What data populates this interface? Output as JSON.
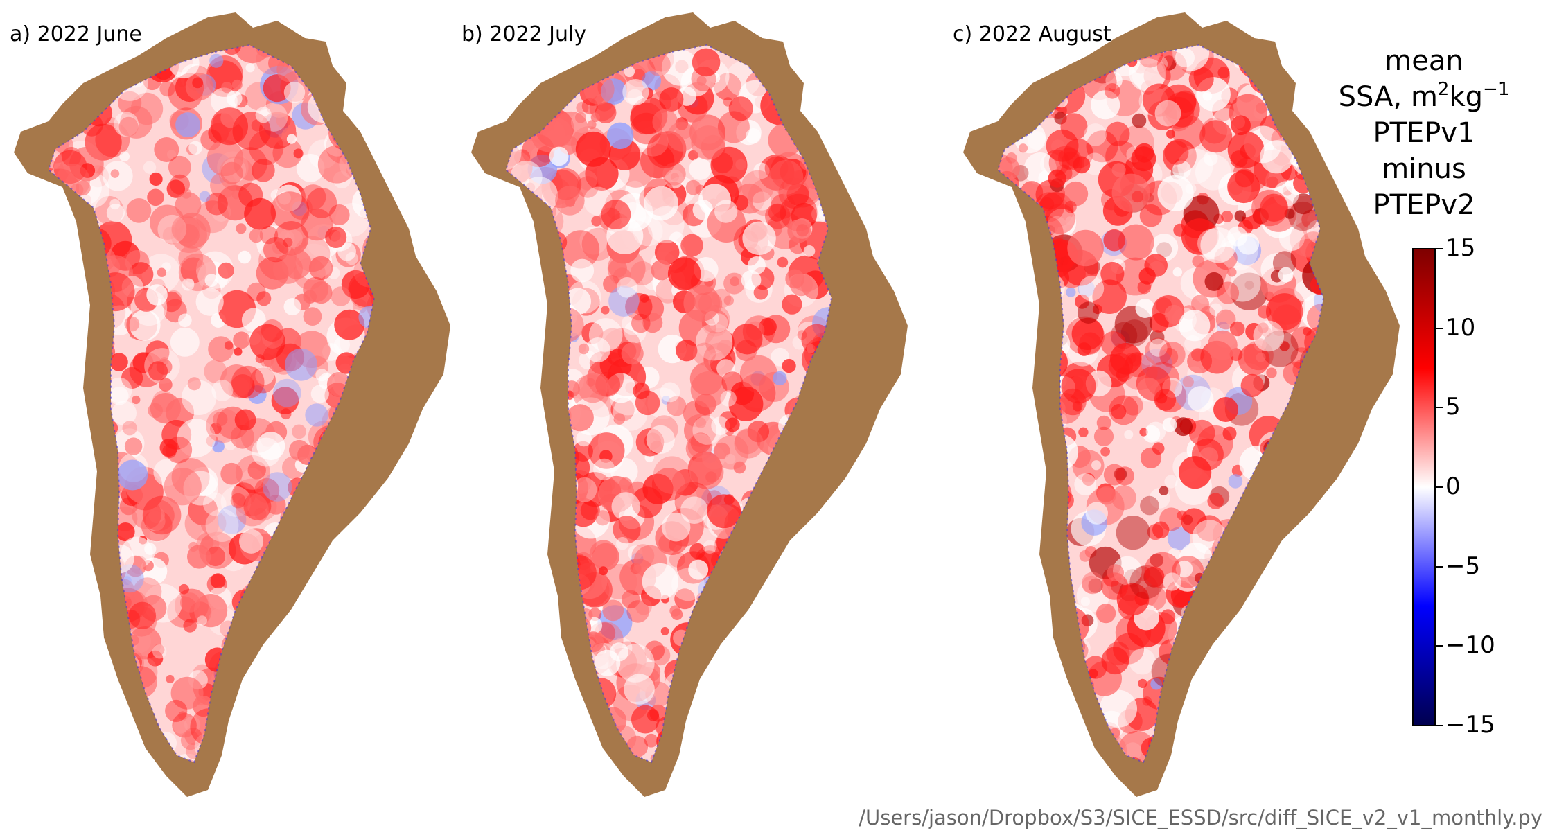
{
  "panels": [
    {
      "title": "a) 2022 June",
      "intensity": 0.55
    },
    {
      "title": "b) 2022 July",
      "intensity": 0.75
    },
    {
      "title": "c) 2022 August",
      "intensity": 0.95
    }
  ],
  "colorbar": {
    "title_line1": "mean",
    "title_line2_prefix": "SSA, m",
    "title_line2_sup1": "2",
    "title_line2_mid": "kg",
    "title_line2_sup2": "−1",
    "title_line3": "PTEPv1",
    "title_line4": "minus",
    "title_line5": "PTEPv2",
    "min": -15,
    "max": 15,
    "ticks": [
      "15",
      "10",
      "5",
      "0",
      "−5",
      "−10",
      "−15"
    ],
    "colors": {
      "top": "#7f0000",
      "high": "#ff0000",
      "mid": "#ffffff",
      "low": "#0000ff",
      "bottom": "#00004f"
    }
  },
  "land_color": "#a6784a",
  "file_path": "/Users/jason/Dropbox/S3/SICE_ESSD/src/diff_SICE_v2_v1_monthly.py"
}
